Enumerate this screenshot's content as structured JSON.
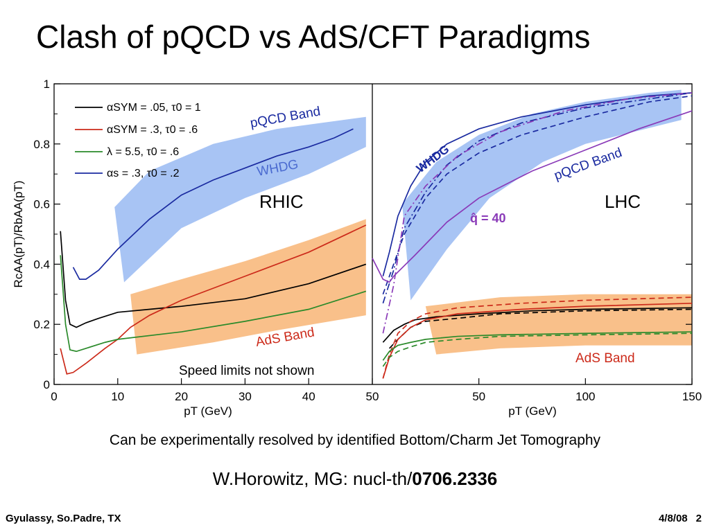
{
  "slide": {
    "title": "Clash of pQCD vs AdS/CFT Paradigms",
    "caption": "Can be experimentally resolved by identified Bottom/Charm Jet Tomography",
    "reference_prefix": "W.Horowitz, MG:  nucl-th/",
    "reference_id": "0706.2336",
    "footer_left": "Gyulassy, So.Padre, TX",
    "footer_date": "4/8/08",
    "page_number": "2"
  },
  "chart_data": [
    {
      "type": "line",
      "panel": "RHIC",
      "panel_label": "RHIC",
      "xlabel": "p_T (GeV)",
      "ylabel": "R^c_AA(p_T)/R^b_AA(p_T)",
      "xlim": [
        0,
        50
      ],
      "ylim": [
        0,
        1
      ],
      "x_ticks": [
        "0",
        "10",
        "20",
        "30",
        "40",
        "50"
      ],
      "y_ticks": [
        "0",
        "0.2",
        "0.4",
        "0.6",
        "0.8",
        "1"
      ],
      "colors": {
        "black": "#000000",
        "red": "#cc2a1a",
        "green": "#2a8a2a",
        "blue": "#1a2aa0",
        "pqcd_band": "#a8c4f4",
        "ads_band": "#f9c08a"
      },
      "legend": [
        "α_SYM = .05, τ_0 = 1",
        "α_SYM = .3, τ_0 = .6",
        "λ = 5.5, τ_0 = .6",
        "α_s = .3, τ_0 = .2"
      ],
      "legend_placement": "top-left",
      "bands": [
        {
          "name": "pQCD Band",
          "label": "pQCD Band",
          "sublabel": "WHDG",
          "color": "#a8c4f4",
          "upper": [
            [
              9.5,
              0.59
            ],
            [
              15,
              0.71
            ],
            [
              25,
              0.8
            ],
            [
              35,
              0.85
            ],
            [
              49,
              0.89
            ]
          ],
          "lower": [
            [
              11,
              0.34
            ],
            [
              20,
              0.52
            ],
            [
              30,
              0.62
            ],
            [
              40,
              0.7
            ],
            [
              49,
              0.79
            ]
          ]
        },
        {
          "name": "AdS Band",
          "label": "AdS Band",
          "color": "#f9c08a",
          "upper": [
            [
              12,
              0.3
            ],
            [
              20,
              0.35
            ],
            [
              30,
              0.41
            ],
            [
              40,
              0.48
            ],
            [
              49,
              0.55
            ]
          ],
          "lower": [
            [
              13,
              0.1
            ],
            [
              25,
              0.14
            ],
            [
              35,
              0.18
            ],
            [
              49,
              0.23
            ]
          ]
        }
      ],
      "series": [
        {
          "name": "α_SYM = .05, τ_0 = 1",
          "color": "#000000",
          "points": [
            [
              1,
              0.51
            ],
            [
              1.8,
              0.28
            ],
            [
              2.5,
              0.2
            ],
            [
              3.5,
              0.19
            ],
            [
              5,
              0.205
            ],
            [
              7,
              0.22
            ],
            [
              10,
              0.24
            ],
            [
              15,
              0.25
            ],
            [
              20,
              0.26
            ],
            [
              30,
              0.285
            ],
            [
              40,
              0.335
            ],
            [
              49,
              0.4
            ]
          ]
        },
        {
          "name": "α_SYM = .3, τ_0 = .6",
          "color": "#cc2a1a",
          "points": [
            [
              1,
              0.12
            ],
            [
              2,
              0.035
            ],
            [
              3,
              0.04
            ],
            [
              5,
              0.07
            ],
            [
              8,
              0.12
            ],
            [
              10,
              0.15
            ],
            [
              12,
              0.19
            ],
            [
              15,
              0.23
            ],
            [
              20,
              0.28
            ],
            [
              30,
              0.36
            ],
            [
              40,
              0.44
            ],
            [
              49,
              0.53
            ]
          ]
        },
        {
          "name": "λ = 5.5, τ_0 = .6",
          "color": "#2a8a2a",
          "points": [
            [
              1,
              0.43
            ],
            [
              1.8,
              0.2
            ],
            [
              2.5,
              0.115
            ],
            [
              3.5,
              0.11
            ],
            [
              5,
              0.12
            ],
            [
              8,
              0.14
            ],
            [
              10,
              0.15
            ],
            [
              20,
              0.175
            ],
            [
              30,
              0.21
            ],
            [
              40,
              0.25
            ],
            [
              49,
              0.31
            ]
          ]
        },
        {
          "name": "α_s = .3, τ_0 = .2",
          "color": "#1a2aa0",
          "points": [
            [
              3,
              0.39
            ],
            [
              4,
              0.35
            ],
            [
              5,
              0.35
            ],
            [
              7,
              0.38
            ],
            [
              10,
              0.45
            ],
            [
              15,
              0.55
            ],
            [
              20,
              0.63
            ],
            [
              25,
              0.68
            ],
            [
              30,
              0.72
            ],
            [
              35,
              0.76
            ],
            [
              40,
              0.79
            ],
            [
              44,
              0.82
            ],
            [
              47,
              0.85
            ]
          ]
        }
      ],
      "annotations": [
        "pQCD Band",
        "WHDG",
        "RHIC",
        "AdS Band",
        "Speed limits not shown"
      ]
    },
    {
      "type": "line",
      "panel": "LHC",
      "panel_label": "LHC",
      "xlabel": "p_T (GeV)",
      "xlim": [
        0,
        150
      ],
      "ylim": [
        0,
        1
      ],
      "x_ticks": [
        "50",
        "100",
        "150"
      ],
      "bands": [
        {
          "name": "pQCD Band",
          "label": "pQCD Band",
          "sublabel": "WHDG",
          "color": "#a8c4f4",
          "upper": [
            [
              14,
              0.6
            ],
            [
              30,
              0.74
            ],
            [
              50,
              0.83
            ],
            [
              75,
              0.9
            ],
            [
              100,
              0.94
            ],
            [
              130,
              0.97
            ],
            [
              145,
              0.98
            ]
          ],
          "lower": [
            [
              18,
              0.28
            ],
            [
              35,
              0.45
            ],
            [
              55,
              0.62
            ],
            [
              80,
              0.74
            ],
            [
              100,
              0.8
            ],
            [
              145,
              0.88
            ]
          ]
        },
        {
          "name": "AdS Band",
          "label": "AdS Band",
          "color": "#f9c08a",
          "upper": [
            [
              25,
              0.26
            ],
            [
              60,
              0.29
            ],
            [
              100,
              0.3
            ],
            [
              150,
              0.3
            ]
          ],
          "lower": [
            [
              30,
              0.1
            ],
            [
              60,
              0.12
            ],
            [
              100,
              0.13
            ],
            [
              150,
              0.13
            ]
          ]
        }
      ],
      "series": [
        {
          "name": "α_SYM = .05, τ_0 = 1",
          "color": "#000000",
          "style": "solid",
          "points": [
            [
              5,
              0.14
            ],
            [
              10,
              0.18
            ],
            [
              15,
              0.2
            ],
            [
              20,
              0.215
            ],
            [
              30,
              0.225
            ],
            [
              50,
              0.235
            ],
            [
              75,
              0.245
            ],
            [
              100,
              0.25
            ],
            [
              150,
              0.255
            ]
          ]
        },
        {
          "name": "α_SYM = .05, τ_0 = 1",
          "color": "#000000",
          "style": "dashed",
          "points": [
            [
              8,
              0.12
            ],
            [
              12,
              0.15
            ],
            [
              18,
              0.19
            ],
            [
              25,
              0.21
            ],
            [
              40,
              0.22
            ],
            [
              60,
              0.235
            ],
            [
              100,
              0.245
            ],
            [
              150,
              0.25
            ]
          ]
        },
        {
          "name": "α_SYM = .3, τ_0 = .6",
          "color": "#cc2a1a",
          "style": "solid",
          "points": [
            [
              5,
              0.02
            ],
            [
              8,
              0.09
            ],
            [
              12,
              0.15
            ],
            [
              18,
              0.19
            ],
            [
              25,
              0.215
            ],
            [
              40,
              0.235
            ],
            [
              70,
              0.25
            ],
            [
              100,
              0.26
            ],
            [
              150,
              0.27
            ]
          ]
        },
        {
          "name": "α_SYM = .3, τ_0 = .6",
          "color": "#cc2a1a",
          "style": "dashed",
          "points": [
            [
              5,
              0.02
            ],
            [
              8,
              0.1
            ],
            [
              12,
              0.17
            ],
            [
              18,
              0.21
            ],
            [
              25,
              0.235
            ],
            [
              40,
              0.255
            ],
            [
              70,
              0.27
            ],
            [
              100,
              0.28
            ],
            [
              150,
              0.29
            ]
          ]
        },
        {
          "name": "λ = 5.5, τ_0 = .6",
          "color": "#2a8a2a",
          "style": "solid",
          "points": [
            [
              5,
              0.08
            ],
            [
              8,
              0.11
            ],
            [
              12,
              0.13
            ],
            [
              18,
              0.14
            ],
            [
              25,
              0.15
            ],
            [
              40,
              0.16
            ],
            [
              60,
              0.165
            ],
            [
              100,
              0.17
            ],
            [
              150,
              0.175
            ]
          ]
        },
        {
          "name": "λ = 5.5, τ_0 = .6",
          "color": "#2a8a2a",
          "style": "dashed",
          "points": [
            [
              5,
              0.06
            ],
            [
              8,
              0.09
            ],
            [
              12,
              0.11
            ],
            [
              18,
              0.125
            ],
            [
              25,
              0.14
            ],
            [
              40,
              0.15
            ],
            [
              60,
              0.16
            ],
            [
              100,
              0.165
            ],
            [
              150,
              0.17
            ]
          ]
        },
        {
          "name": "α_s = .3, τ_0 = .2",
          "color": "#1a2aa0",
          "style": "solid",
          "points": [
            [
              5,
              0.36
            ],
            [
              8,
              0.44
            ],
            [
              12,
              0.56
            ],
            [
              18,
              0.66
            ],
            [
              25,
              0.74
            ],
            [
              35,
              0.8
            ],
            [
              50,
              0.85
            ],
            [
              70,
              0.89
            ],
            [
              100,
              0.93
            ],
            [
              130,
              0.96
            ],
            [
              150,
              0.97
            ]
          ]
        },
        {
          "name": "α_s = .3, τ_0 = .2",
          "color": "#1a2aa0",
          "style": "dashed",
          "points": [
            [
              5,
              0.3
            ],
            [
              10,
              0.4
            ],
            [
              15,
              0.5
            ],
            [
              25,
              0.62
            ],
            [
              35,
              0.7
            ],
            [
              50,
              0.77
            ],
            [
              70,
              0.83
            ],
            [
              100,
              0.89
            ],
            [
              130,
              0.94
            ],
            [
              150,
              0.96
            ]
          ]
        },
        {
          "name": "α_s = .3, τ_0 = .2",
          "color": "#1a2aa0",
          "style": "dashdot",
          "points": [
            [
              5,
              0.27
            ],
            [
              10,
              0.38
            ],
            [
              15,
              0.52
            ],
            [
              25,
              0.64
            ],
            [
              35,
              0.73
            ],
            [
              50,
              0.81
            ],
            [
              70,
              0.87
            ],
            [
              100,
              0.92
            ],
            [
              130,
              0.95
            ],
            [
              150,
              0.97
            ]
          ]
        },
        {
          "name": "q̂ = 40",
          "color": "#8a3ab8",
          "style": "solid",
          "points": [
            [
              0,
              0.42
            ],
            [
              5,
              0.35
            ],
            [
              8,
              0.34
            ],
            [
              10,
              0.36
            ],
            [
              20,
              0.43
            ],
            [
              35,
              0.54
            ],
            [
              50,
              0.62
            ],
            [
              75,
              0.71
            ],
            [
              100,
              0.78
            ],
            [
              125,
              0.85
            ],
            [
              150,
              0.91
            ]
          ]
        },
        {
          "name": "q̂ = 40",
          "color": "#8a3ab8",
          "style": "dashdot",
          "points": [
            [
              5,
              0.17
            ],
            [
              10,
              0.33
            ],
            [
              15,
              0.56
            ],
            [
              25,
              0.66
            ],
            [
              40,
              0.76
            ],
            [
              60,
              0.84
            ],
            [
              90,
              0.91
            ],
            [
              120,
              0.95
            ],
            [
              150,
              0.97
            ]
          ]
        }
      ],
      "annotations": [
        "WHDG",
        "pQCD Band",
        "q̂ = 40",
        "LHC",
        "AdS Band"
      ]
    }
  ]
}
